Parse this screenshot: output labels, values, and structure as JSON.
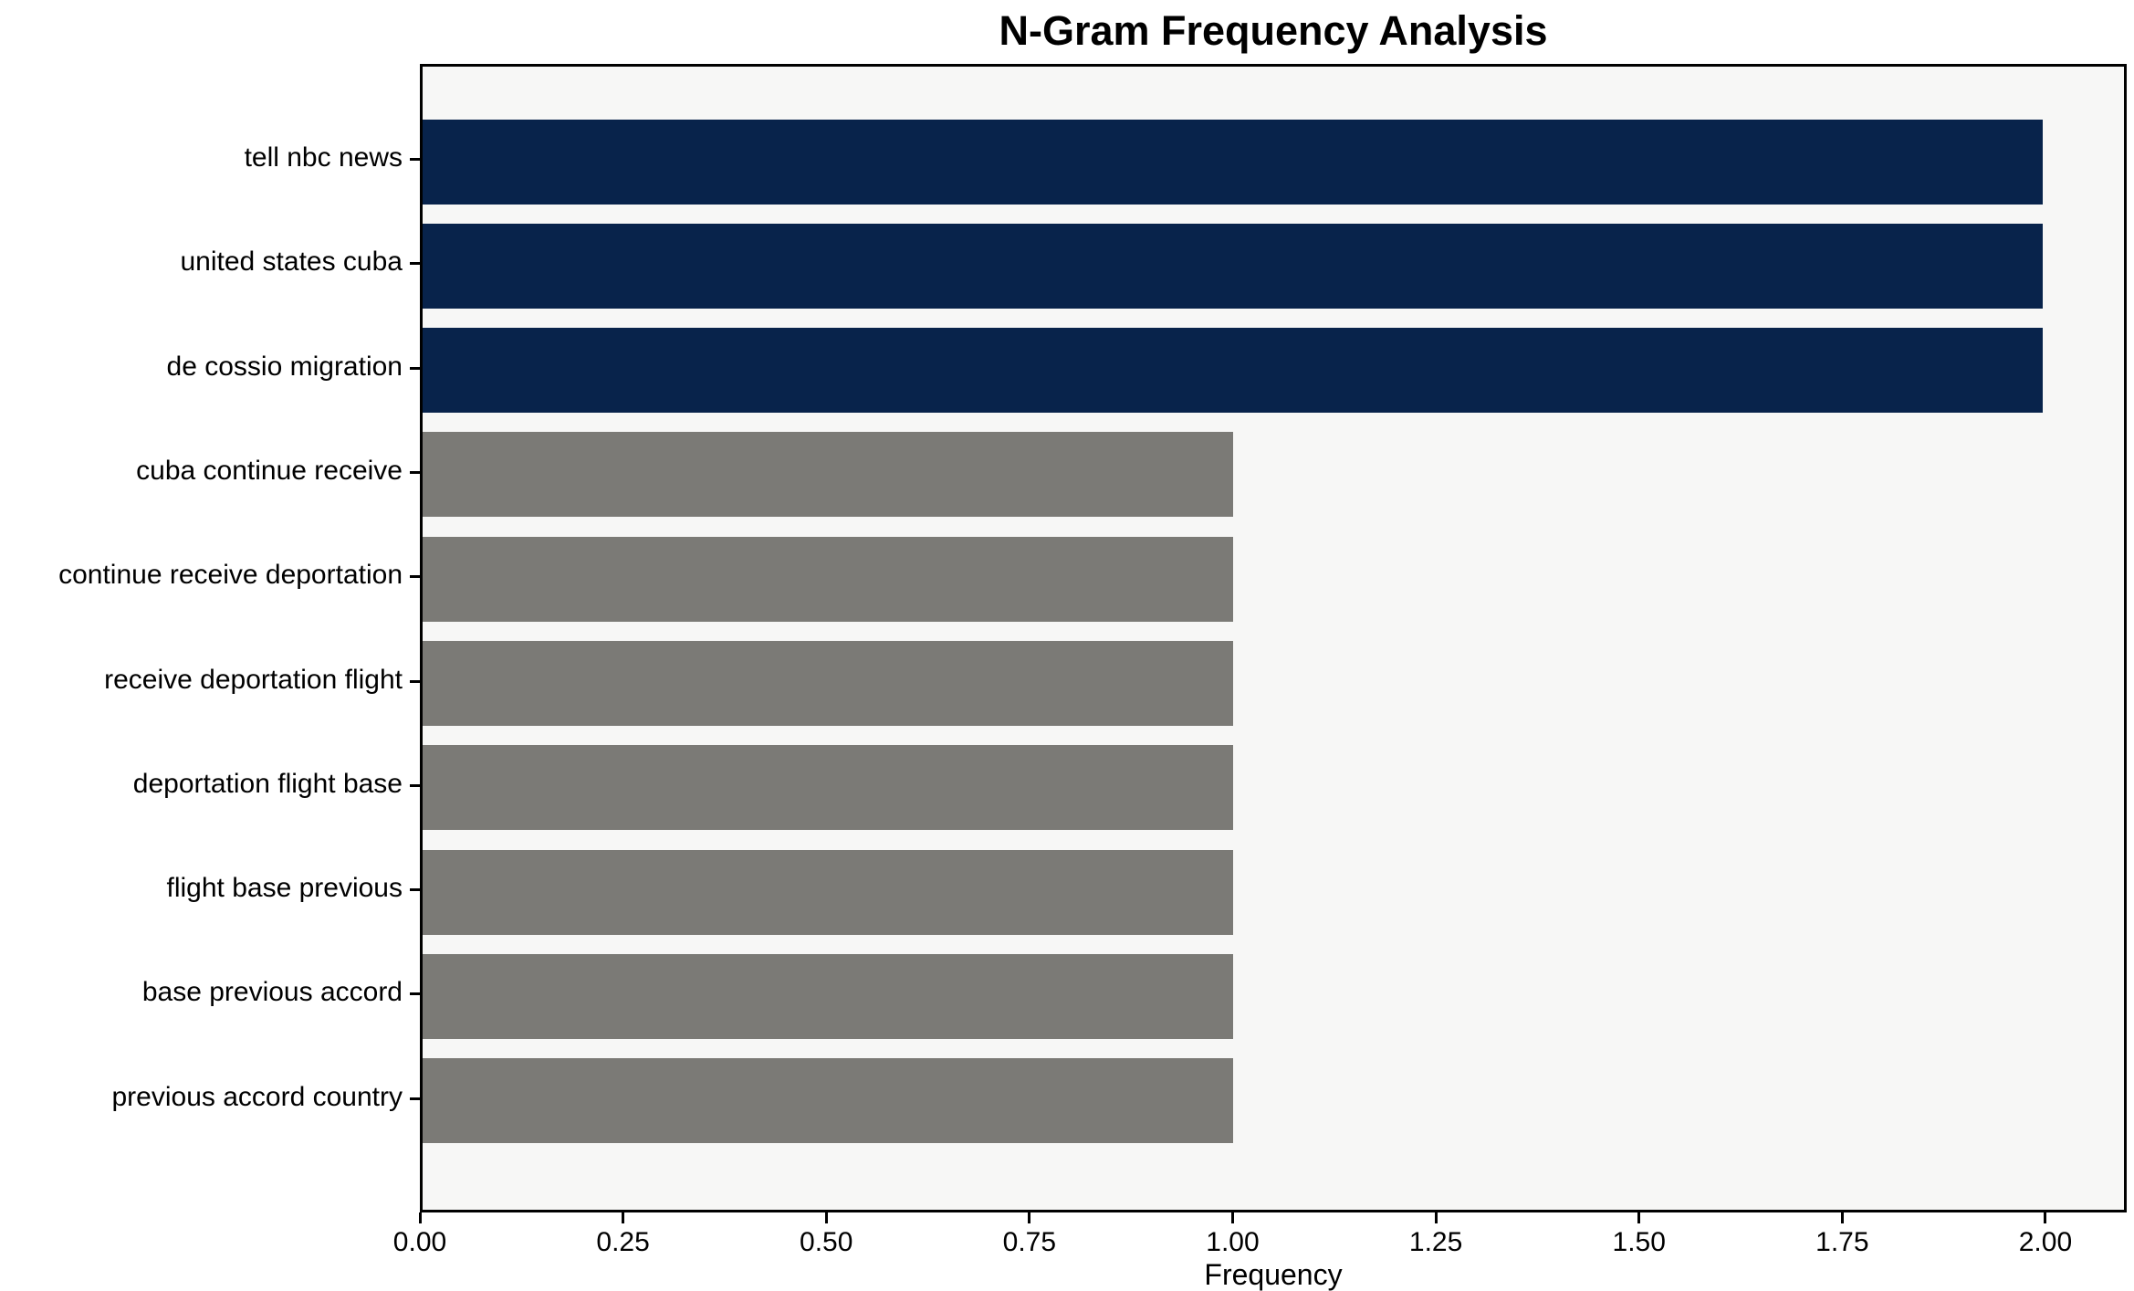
{
  "chart_data": {
    "type": "bar",
    "orientation": "horizontal",
    "title": "N-Gram Frequency Analysis",
    "xlabel": "Frequency",
    "ylabel": "",
    "categories": [
      "tell nbc news",
      "united states cuba",
      "de cossio migration",
      "cuba continue receive",
      "continue receive deportation",
      "receive deportation flight",
      "deportation flight base",
      "flight base previous",
      "base previous accord",
      "previous accord country"
    ],
    "values": [
      2,
      2,
      2,
      1,
      1,
      1,
      1,
      1,
      1,
      1
    ],
    "bar_colors": [
      "#08234b",
      "#08234b",
      "#08234b",
      "#7b7a76",
      "#7b7a76",
      "#7b7a76",
      "#7b7a76",
      "#7b7a76",
      "#7b7a76",
      "#7b7a76"
    ],
    "xticks": [
      "0.00",
      "0.25",
      "0.50",
      "0.75",
      "1.00",
      "1.25",
      "1.50",
      "1.75",
      "2.00"
    ],
    "xtick_values": [
      0,
      0.25,
      0.5,
      0.75,
      1.0,
      1.25,
      1.5,
      1.75,
      2.0
    ],
    "xlim": [
      0,
      2.1
    ],
    "grid": false,
    "legend": false,
    "plot_background": "#f7f7f6",
    "figure_background": "#ffffff",
    "highlight_color": "#08234b",
    "default_color": "#7b7a76"
  }
}
